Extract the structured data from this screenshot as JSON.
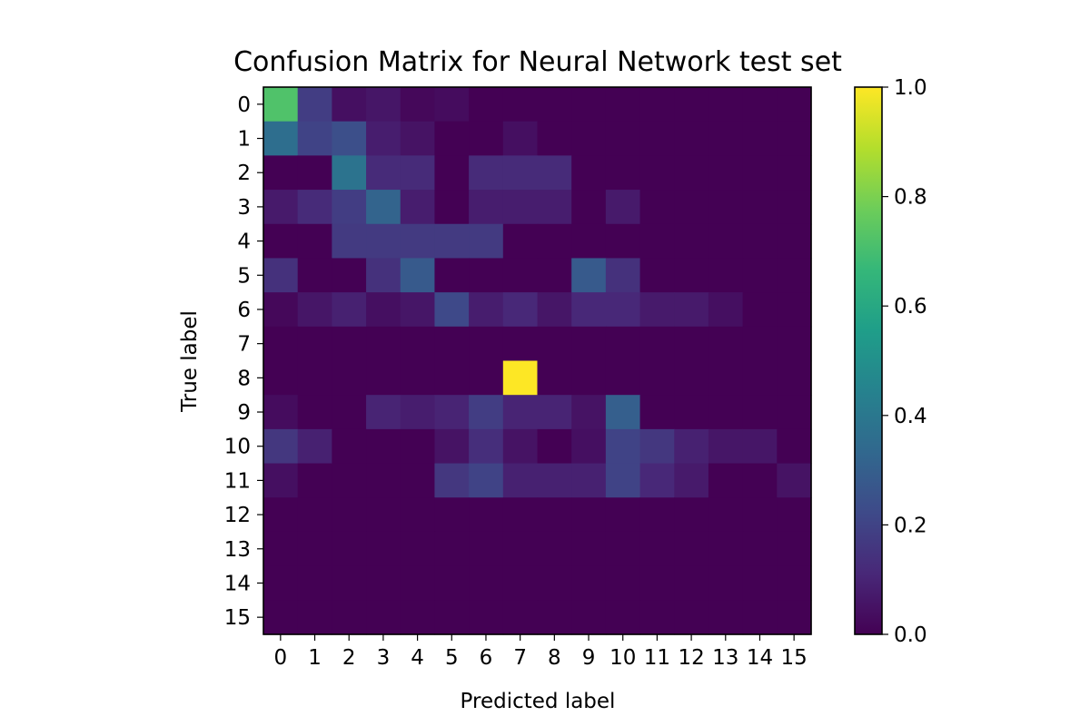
{
  "chart_data": {
    "type": "heatmap",
    "title": "Confusion Matrix for Neural Network test set",
    "xlabel": "Predicted label",
    "ylabel": "True label",
    "x_categories": [
      "0",
      "1",
      "2",
      "3",
      "4",
      "5",
      "6",
      "7",
      "8",
      "9",
      "10",
      "11",
      "12",
      "13",
      "14",
      "15"
    ],
    "y_categories": [
      "0",
      "1",
      "2",
      "3",
      "4",
      "5",
      "6",
      "7",
      "8",
      "9",
      "10",
      "11",
      "12",
      "13",
      "14",
      "15"
    ],
    "colormap": "viridis",
    "value_range": [
      0,
      1
    ],
    "colorbar_ticks": [
      "0.0",
      "0.2",
      "0.4",
      "0.6",
      "0.8",
      "1.0"
    ],
    "colorbar_tick_values": [
      0,
      0.2,
      0.4,
      0.6,
      0.8,
      1.0
    ],
    "grid": false,
    "legend": "colorbar-right",
    "matrix": [
      [
        0.72,
        0.18,
        0.04,
        0.06,
        0.02,
        0.03,
        0,
        0,
        0,
        0,
        0,
        0,
        0,
        0,
        0,
        0
      ],
      [
        0.36,
        0.2,
        0.24,
        0.08,
        0.05,
        0,
        0,
        0.04,
        0,
        0,
        0,
        0,
        0,
        0,
        0,
        0
      ],
      [
        0,
        0,
        0.38,
        0.12,
        0.12,
        0,
        0.12,
        0.12,
        0.12,
        0,
        0,
        0,
        0,
        0,
        0,
        0
      ],
      [
        0.07,
        0.12,
        0.18,
        0.32,
        0.08,
        0,
        0.08,
        0.08,
        0.08,
        0,
        0.07,
        0,
        0,
        0,
        0,
        0
      ],
      [
        0,
        0,
        0.17,
        0.17,
        0.17,
        0.17,
        0.17,
        0,
        0,
        0,
        0,
        0,
        0,
        0,
        0,
        0
      ],
      [
        0.14,
        0,
        0,
        0.14,
        0.28,
        0,
        0,
        0,
        0,
        0.28,
        0.14,
        0,
        0,
        0,
        0,
        0
      ],
      [
        0.02,
        0.06,
        0.09,
        0.04,
        0.06,
        0.22,
        0.08,
        0.11,
        0.06,
        0.11,
        0.11,
        0.07,
        0.07,
        0.04,
        0,
        0
      ],
      [
        0,
        0,
        0,
        0,
        0,
        0,
        0,
        0,
        0,
        0,
        0,
        0,
        0,
        0,
        0,
        0
      ],
      [
        0,
        0,
        0,
        0,
        0,
        0,
        0,
        1.0,
        0,
        0,
        0,
        0,
        0,
        0,
        0,
        0
      ],
      [
        0.03,
        0,
        0,
        0.1,
        0.08,
        0.1,
        0.18,
        0.1,
        0.1,
        0.05,
        0.3,
        0,
        0,
        0,
        0,
        0
      ],
      [
        0.16,
        0.09,
        0,
        0,
        0,
        0.05,
        0.13,
        0.05,
        0,
        0.04,
        0.2,
        0.16,
        0.09,
        0.06,
        0.06,
        0
      ],
      [
        0.04,
        0,
        0,
        0,
        0,
        0.16,
        0.2,
        0.09,
        0.09,
        0.09,
        0.2,
        0.11,
        0.07,
        0,
        0,
        0.05
      ],
      [
        0,
        0,
        0,
        0,
        0,
        0,
        0,
        0,
        0,
        0,
        0,
        0,
        0,
        0,
        0,
        0
      ],
      [
        0,
        0,
        0,
        0,
        0,
        0,
        0,
        0,
        0,
        0,
        0,
        0,
        0,
        0,
        0,
        0
      ],
      [
        0,
        0,
        0,
        0,
        0,
        0,
        0,
        0,
        0,
        0,
        0,
        0,
        0,
        0,
        0,
        0
      ],
      [
        0,
        0,
        0,
        0,
        0,
        0,
        0,
        0,
        0,
        0,
        0,
        0,
        0,
        0,
        0,
        0
      ]
    ]
  }
}
